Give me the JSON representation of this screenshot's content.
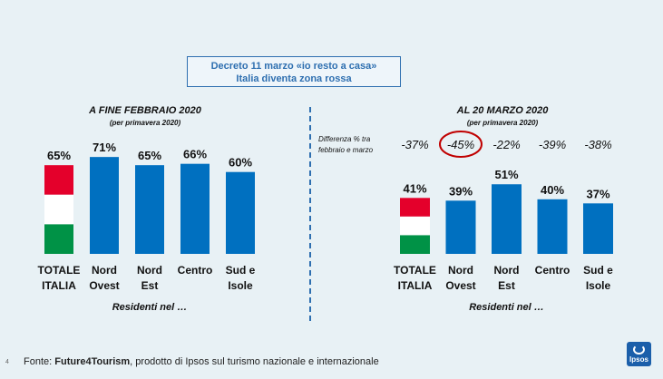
{
  "header": {
    "decree_line1": "Decreto 11 marzo «io resto a casa»",
    "decree_line2": "Italia diventa zona rossa"
  },
  "chart_data": [
    {
      "type": "bar",
      "title": "A FINE FEBBRAIO 2020",
      "subtitle": "(per primavera 2020)",
      "categories": [
        [
          "TOTALE",
          "ITALIA"
        ],
        [
          "Nord",
          "Ovest"
        ],
        [
          "Nord",
          "Est"
        ],
        [
          "Centro"
        ],
        [
          "Sud e",
          "Isole"
        ]
      ],
      "values": [
        65,
        71,
        65,
        66,
        60
      ],
      "value_labels": [
        "65%",
        "71%",
        "65%",
        "66%",
        "60%"
      ],
      "xlabel": "Residenti nel …",
      "ylim": [
        0,
        100
      ]
    },
    {
      "type": "bar",
      "title": "AL 20 MARZO 2020",
      "subtitle": "(per primavera 2020)",
      "categories": [
        [
          "TOTALE",
          "ITALIA"
        ],
        [
          "Nord",
          "Ovest"
        ],
        [
          "Nord",
          "Est"
        ],
        [
          "Centro"
        ],
        [
          "Sud e",
          "Isole"
        ]
      ],
      "values": [
        41,
        39,
        51,
        40,
        37
      ],
      "value_labels": [
        "41%",
        "39%",
        "51%",
        "40%",
        "37%"
      ],
      "difference_title": [
        "Differenza % tra",
        "febbraio e marzo"
      ],
      "differences": [
        "-37%",
        "-45%",
        "-22%",
        "-39%",
        "-38%"
      ],
      "highlighted_difference": 1,
      "xlabel": "Residenti nel …",
      "ylim": [
        0,
        100
      ]
    }
  ],
  "colors": {
    "bar": "#0070c0",
    "flag_green": "#009246",
    "flag_white": "#ffffff",
    "flag_red": "#e4002b",
    "highlight": "#c00000",
    "accent": "#2e6fb0"
  },
  "footer": {
    "prefix": "Fonte: ",
    "source": "Future4Tourism",
    "suffix": ", prodotto di Ipsos sul turismo nazionale e internazionale",
    "page_number": "4"
  },
  "logo": {
    "text": "Ipsos"
  }
}
